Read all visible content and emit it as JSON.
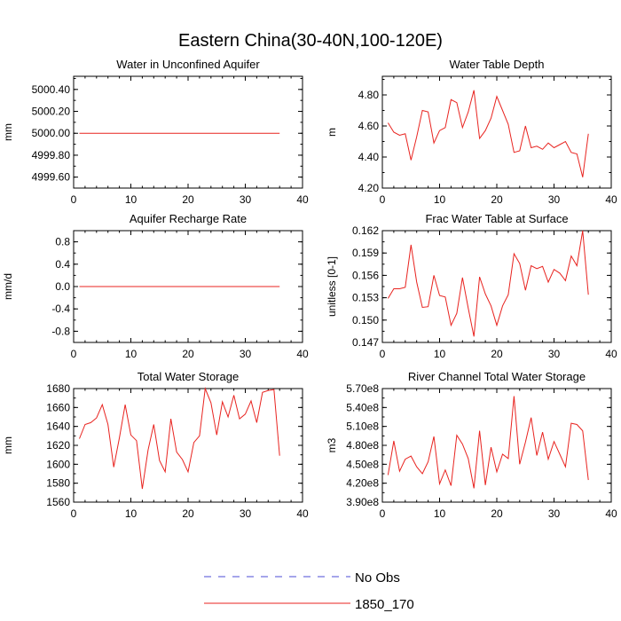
{
  "figure": {
    "title": "Eastern China(30-40N,100-120E)"
  },
  "legend": {
    "items": [
      {
        "label": "No Obs",
        "color": "#4b4bd6",
        "style": "dashed"
      },
      {
        "label": "1850_170",
        "color": "#e8231f",
        "style": "solid"
      }
    ]
  },
  "colors": {
    "series": "#e8231f",
    "axis": "#000000"
  },
  "chart_data": [
    {
      "type": "line",
      "title": "Water in Unconfined Aquifer",
      "ylabel": "mm",
      "xlim": [
        0,
        40
      ],
      "xticks": [
        "0",
        "10",
        "20",
        "30",
        "40"
      ],
      "xtick_values": [
        0,
        10,
        20,
        30,
        40
      ],
      "ylim": [
        4999.5,
        5000.52
      ],
      "yticks": [
        "4999.60",
        "4999.80",
        "5000.00",
        "5000.20",
        "5000.40"
      ],
      "ytick_values": [
        4999.6,
        4999.8,
        5000.0,
        5000.2,
        5000.4
      ],
      "series": [
        {
          "name": "1850_170",
          "x": [
            1,
            36
          ],
          "values": [
            5000.0,
            5000.0
          ]
        }
      ]
    },
    {
      "type": "line",
      "title": "Water Table Depth",
      "ylabel": "m",
      "xlim": [
        0,
        40
      ],
      "xticks": [
        "0",
        "10",
        "20",
        "30",
        "40"
      ],
      "xtick_values": [
        0,
        10,
        20,
        30,
        40
      ],
      "ylim": [
        4.2,
        4.92
      ],
      "yticks": [
        "4.20",
        "4.40",
        "4.60",
        "4.80"
      ],
      "ytick_values": [
        4.2,
        4.4,
        4.6,
        4.8
      ],
      "series": [
        {
          "name": "1850_170",
          "x": [
            1,
            2,
            3,
            4,
            5,
            6,
            7,
            8,
            9,
            10,
            11,
            12,
            13,
            14,
            15,
            16,
            17,
            18,
            19,
            20,
            21,
            22,
            23,
            24,
            25,
            26,
            27,
            28,
            29,
            30,
            31,
            32,
            33,
            34,
            35,
            36
          ],
          "values": [
            4.62,
            4.56,
            4.54,
            4.55,
            4.38,
            4.53,
            4.7,
            4.69,
            4.49,
            4.57,
            4.59,
            4.77,
            4.75,
            4.59,
            4.69,
            4.83,
            4.52,
            4.57,
            4.65,
            4.79,
            4.7,
            4.61,
            4.43,
            4.44,
            4.6,
            4.46,
            4.47,
            4.45,
            4.49,
            4.46,
            4.48,
            4.5,
            4.43,
            4.42,
            4.27,
            4.55
          ]
        }
      ]
    },
    {
      "type": "line",
      "title": "Aquifer Recharge Rate",
      "ylabel": "mm/d",
      "xlim": [
        0,
        40
      ],
      "xticks": [
        "0",
        "10",
        "20",
        "30",
        "40"
      ],
      "xtick_values": [
        0,
        10,
        20,
        30,
        40
      ],
      "ylim": [
        -1.0,
        1.0
      ],
      "yticks": [
        "-0.8",
        "-0.4",
        "0.0",
        "0.4",
        "0.8"
      ],
      "ytick_values": [
        -0.8,
        -0.4,
        0.0,
        0.4,
        0.8
      ],
      "series": [
        {
          "name": "1850_170",
          "x": [
            1,
            36
          ],
          "values": [
            0.0,
            0.0
          ]
        }
      ]
    },
    {
      "type": "line",
      "title": "Frac Water Table at Surface",
      "ylabel": "unitless [0-1]",
      "xlim": [
        0,
        40
      ],
      "xticks": [
        "0",
        "10",
        "20",
        "30",
        "40"
      ],
      "xtick_values": [
        0,
        10,
        20,
        30,
        40
      ],
      "ylim": [
        0.147,
        0.162
      ],
      "yticks": [
        "0.147",
        "0.150",
        "0.153",
        "0.156",
        "0.159",
        "0.162"
      ],
      "ytick_values": [
        0.147,
        0.15,
        0.153,
        0.156,
        0.159,
        0.162
      ],
      "series": [
        {
          "name": "1850_170",
          "x": [
            1,
            2,
            3,
            4,
            5,
            6,
            7,
            8,
            9,
            10,
            11,
            12,
            13,
            14,
            15,
            16,
            17,
            18,
            19,
            20,
            21,
            22,
            23,
            24,
            25,
            26,
            27,
            28,
            29,
            30,
            31,
            32,
            33,
            34,
            35,
            36
          ],
          "values": [
            0.1529,
            0.1542,
            0.1542,
            0.1544,
            0.1601,
            0.1551,
            0.1517,
            0.1518,
            0.156,
            0.1533,
            0.1531,
            0.1493,
            0.1509,
            0.1557,
            0.1516,
            0.1478,
            0.1558,
            0.1535,
            0.1519,
            0.1493,
            0.1519,
            0.1534,
            0.1589,
            0.1576,
            0.154,
            0.1573,
            0.1569,
            0.1572,
            0.1551,
            0.1568,
            0.1563,
            0.1553,
            0.1586,
            0.1573,
            0.162,
            0.1534
          ]
        }
      ]
    },
    {
      "type": "line",
      "title": "Total Water Storage",
      "ylabel": "mm",
      "xlim": [
        0,
        40
      ],
      "xticks": [
        "0",
        "10",
        "20",
        "30",
        "40"
      ],
      "xtick_values": [
        0,
        10,
        20,
        30,
        40
      ],
      "ylim": [
        1560,
        1680
      ],
      "yticks": [
        "1560",
        "1580",
        "1600",
        "1620",
        "1640",
        "1660",
        "1680"
      ],
      "ytick_values": [
        1560,
        1580,
        1600,
        1620,
        1640,
        1660,
        1680
      ],
      "series": [
        {
          "name": "1850_170",
          "x": [
            1,
            2,
            3,
            4,
            5,
            6,
            7,
            8,
            9,
            10,
            11,
            12,
            13,
            14,
            15,
            16,
            17,
            18,
            19,
            20,
            21,
            22,
            23,
            24,
            25,
            26,
            27,
            28,
            29,
            30,
            31,
            32,
            33,
            34,
            35,
            36
          ],
          "values": [
            1627,
            1642,
            1644,
            1649,
            1663,
            1642,
            1597,
            1628,
            1663,
            1631,
            1625,
            1574,
            1615,
            1642,
            1604,
            1592,
            1648,
            1613,
            1605,
            1592,
            1623,
            1630,
            1680,
            1665,
            1631,
            1666,
            1650,
            1673,
            1648,
            1653,
            1667,
            1644,
            1676,
            1678,
            1679,
            1609
          ]
        }
      ]
    },
    {
      "type": "line",
      "title": "River Channel Total Water Storage",
      "ylabel": "m3",
      "xlim": [
        0,
        40
      ],
      "xticks": [
        "0",
        "10",
        "20",
        "30",
        "40"
      ],
      "xtick_values": [
        0,
        10,
        20,
        30,
        40
      ],
      "ylim": [
        390000000.0,
        570000000.0
      ],
      "yticks": [
        "3.90e8",
        "4.20e8",
        "4.50e8",
        "4.80e8",
        "5.10e8",
        "5.40e8",
        "5.70e8"
      ],
      "ytick_values": [
        390000000.0,
        420000000.0,
        450000000.0,
        480000000.0,
        510000000.0,
        540000000.0,
        570000000.0
      ],
      "series": [
        {
          "name": "1850_170",
          "x": [
            1,
            2,
            3,
            4,
            5,
            6,
            7,
            8,
            9,
            10,
            11,
            12,
            13,
            14,
            15,
            16,
            17,
            18,
            19,
            20,
            21,
            22,
            23,
            24,
            25,
            26,
            27,
            28,
            29,
            30,
            31,
            32,
            33,
            34,
            35,
            36
          ],
          "values": [
            433000000.0,
            487000000.0,
            439000000.0,
            458000000.0,
            463000000.0,
            446000000.0,
            435000000.0,
            454000000.0,
            494000000.0,
            419000000.0,
            441000000.0,
            416000000.0,
            496000000.0,
            482000000.0,
            459000000.0,
            412000000.0,
            503000000.0,
            417000000.0,
            477000000.0,
            438000000.0,
            466000000.0,
            459000000.0,
            558000000.0,
            450000000.0,
            485000000.0,
            524000000.0,
            464000000.0,
            501000000.0,
            458000000.0,
            486000000.0,
            466000000.0,
            446000000.0,
            515000000.0,
            513000000.0,
            503000000.0,
            425000000.0
          ]
        }
      ]
    }
  ]
}
